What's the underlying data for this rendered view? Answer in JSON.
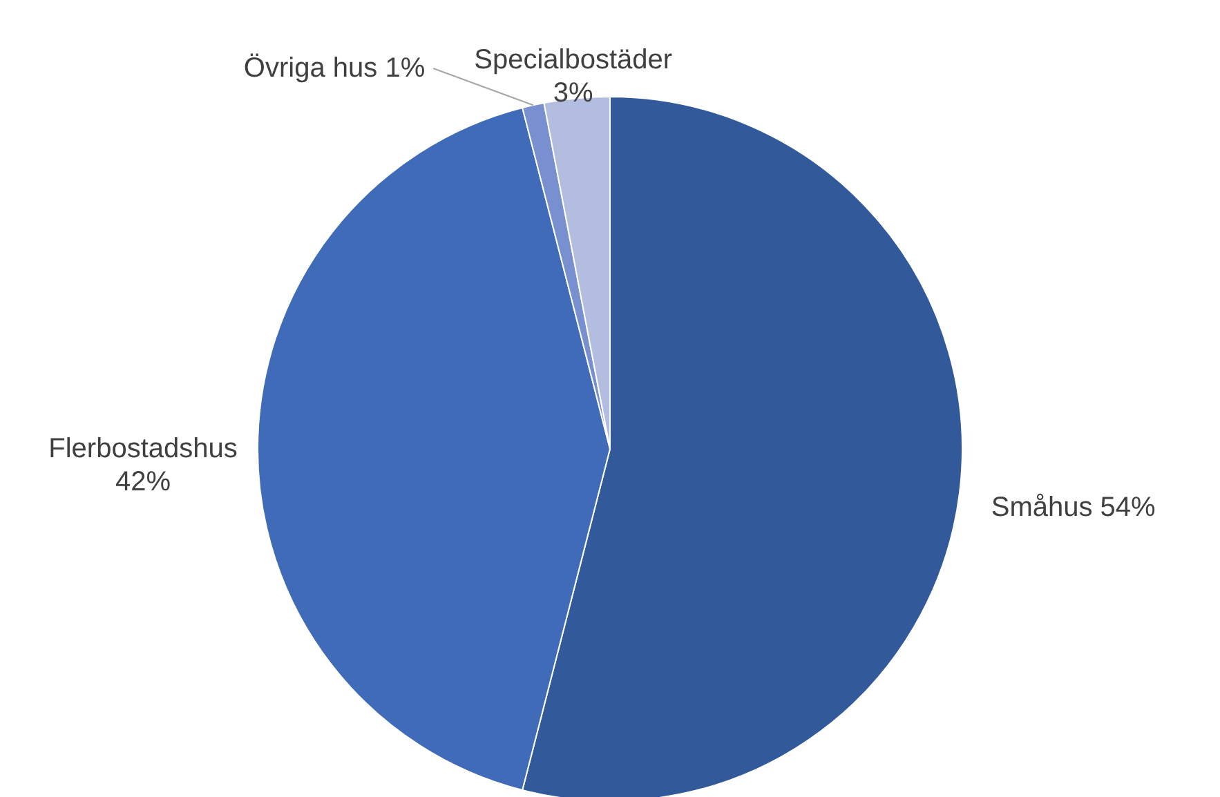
{
  "chart_data": {
    "type": "pie",
    "categories": [
      "Småhus",
      "Flerbostadshus",
      "Övriga hus",
      "Specialbostäder"
    ],
    "values": [
      54,
      42,
      1,
      3
    ],
    "value_labels": [
      "54%",
      "42%",
      "1%",
      "3%"
    ],
    "colors": [
      "#325a9a",
      "#3f6bb8",
      "#7890cf",
      "#b3bde0"
    ]
  }
}
